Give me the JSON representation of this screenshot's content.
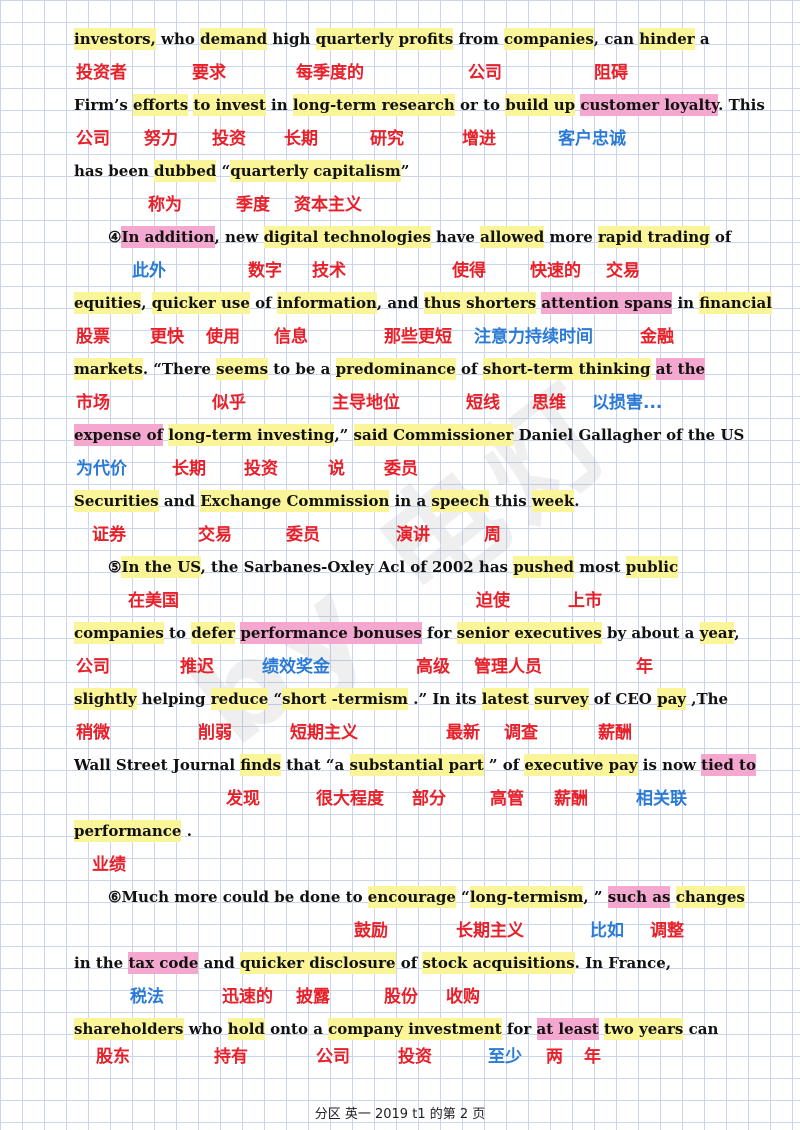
{
  "watermark": "by 电灯",
  "footer": "分区 英一 2019 t1 的第 2 页",
  "lines": {
    "l1": [
      "investors,",
      " who ",
      "demand",
      " high ",
      "quarterly profits",
      " from ",
      "companies",
      ", can ",
      "hinder",
      " a"
    ],
    "l2": [
      "Firm",
      "’s ",
      "efforts",
      " ",
      "to invest",
      " in ",
      "long-term research",
      " or to ",
      "build up",
      " ",
      "customer loyalty",
      ". This"
    ],
    "l3": [
      "has been ",
      "dubbed",
      " “",
      "quarterly capitalism",
      "”"
    ],
    "l4": [
      "④",
      "In addition",
      ", new ",
      "digital technologies",
      " have ",
      "allowed",
      " more ",
      "rapid trading",
      " of"
    ],
    "l5": [
      "equities",
      ", ",
      "quicker use",
      " of ",
      "information",
      ", and ",
      "thus shorters",
      " ",
      "attention spans",
      " in ",
      "financial"
    ],
    "l6": [
      "markets",
      ". “There ",
      "seems",
      " to be a ",
      "predominance",
      " of ",
      "short-term thinking",
      " ",
      "at the"
    ],
    "l7": [
      "expense of",
      " ",
      "long-term investing",
      ",” ",
      "said Commissioner",
      " Daniel Gallagher of the US"
    ],
    "l8": [
      "Securities",
      " and ",
      "Exchange Commission",
      " in a ",
      "speech",
      " this ",
      "week",
      "."
    ],
    "l9": [
      "⑤",
      "In the US",
      ", the Sarbanes-Oxley Acl of 2002 has ",
      "pushed",
      " most ",
      "public"
    ],
    "l10": [
      "companies",
      " to ",
      "defer",
      " ",
      "performance bonuses",
      " for ",
      "senior executives",
      " by about a ",
      "year",
      ","
    ],
    "l11": [
      "slightly",
      " helping ",
      "reduce",
      " “",
      "short -termism",
      " .” In its ",
      "latest",
      " ",
      "survey",
      " of CEO ",
      "pay",
      " ,The"
    ],
    "l12": [
      "Wall Street Journal ",
      "finds",
      " that “a ",
      "substantial part",
      " ” of ",
      "executive pay",
      " is now ",
      "tied to"
    ],
    "l13": [
      "performance",
      " ."
    ],
    "l14": [
      "⑥Much more could be done to ",
      "encourage",
      " “",
      "long-termism",
      ", ” ",
      "such as",
      " ",
      "changes"
    ],
    "l15": [
      "in the ",
      "tax code",
      " and ",
      "quicker disclosure",
      " of ",
      "stock acquisitions",
      ". In France,"
    ],
    "l16": [
      "shareholders",
      " who ",
      "hold",
      " onto a ",
      "company investment",
      " for ",
      "at least",
      " ",
      "two years",
      " can"
    ]
  },
  "gloss": {
    "g1": [
      "投资者",
      "要求",
      "每季度的",
      "公司",
      "阻碍"
    ],
    "g2": [
      "公司",
      "努力",
      "投资",
      "长期",
      "研究",
      "增进",
      "客户忠诚"
    ],
    "g3": [
      "称为",
      "季度",
      "资本主义"
    ],
    "g4": [
      "此外",
      "数字",
      "技术",
      "使得",
      "快速的",
      "交易"
    ],
    "g5": [
      "股票",
      "更快",
      "使用",
      "信息",
      "那些更短",
      "注意力持续时间",
      "金融"
    ],
    "g6": [
      "市场",
      "似乎",
      "主导地位",
      "短线",
      "思维",
      "以损害..."
    ],
    "g7": [
      "为代价",
      "长期",
      "投资",
      "说",
      "委员"
    ],
    "g8": [
      "证券",
      "交易",
      "委员",
      "演讲",
      "周"
    ],
    "g9": [
      "在美国",
      "迫使",
      "上市"
    ],
    "g10": [
      "公司",
      "推迟",
      "绩效奖金",
      "高级",
      "管理人员",
      "年"
    ],
    "g11": [
      "稍微",
      "削弱",
      "短期主义",
      "最新",
      "调查",
      "薪酬"
    ],
    "g12": [
      "发现",
      "很大程度",
      "部分",
      "高管",
      "薪酬",
      "相关联"
    ],
    "g13": [
      "业绩"
    ],
    "g14": [
      "鼓励",
      "长期主义",
      "比如",
      "调整"
    ],
    "g15": [
      "税法",
      "迅速的",
      "披露",
      "股份",
      "收购"
    ],
    "g16": [
      "股东",
      "持有",
      "公司",
      "投资",
      "至少",
      "两",
      "年"
    ]
  },
  "colors": {
    "yellow_highlight": "#fbf59a",
    "pink_highlight": "#f4a8cf",
    "red_text": "#e8202a",
    "blue_text": "#2b7bd6",
    "grid": "#c9d6ee"
  }
}
